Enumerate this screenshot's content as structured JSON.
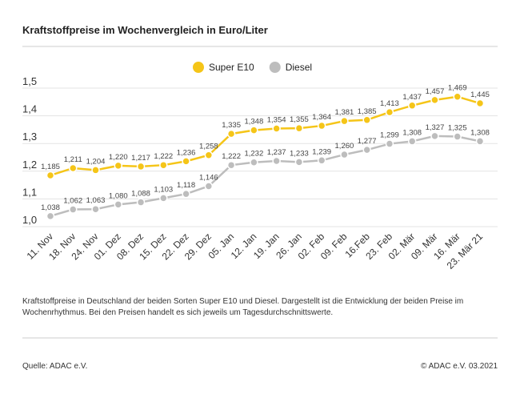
{
  "chart_data": {
    "type": "line",
    "title": "Kraftstoffpreise im Wochenvergleich in Euro/Liter",
    "categories": [
      "11. Nov",
      "18. Nov",
      "24. Nov",
      "01. Dez",
      "08. Dez",
      "15. Dez",
      "22. Dez",
      "29. Dez",
      "05. Jan",
      "12. Jan",
      "19. Jan",
      "26. Jan",
      "02. Feb",
      "09. Feb",
      "16.Feb",
      "23. Feb",
      "02. Mär",
      "09. Mär",
      "16. Mär",
      "23. Mär 21"
    ],
    "series": [
      {
        "name": "Super E10",
        "color": "#f5c518",
        "values": [
          1.185,
          1.211,
          1.204,
          1.22,
          1.217,
          1.222,
          1.236,
          1.258,
          1.335,
          1.348,
          1.354,
          1.355,
          1.364,
          1.381,
          1.385,
          1.413,
          1.437,
          1.457,
          1.469,
          1.445
        ],
        "value_labels": [
          "1,185",
          "1,211",
          "1,204",
          "1,220",
          "1,217",
          "1,222",
          "1,236",
          "1,258",
          "1,335",
          "1,348",
          "1,354",
          "1,355",
          "1,364",
          "1,381",
          "1,385",
          "1,413",
          "1,437",
          "1,457",
          "1,469",
          "1,445"
        ]
      },
      {
        "name": "Diesel",
        "color": "#bdbdbd",
        "values": [
          1.038,
          1.062,
          1.063,
          1.08,
          1.088,
          1.103,
          1.118,
          1.146,
          1.222,
          1.232,
          1.237,
          1.233,
          1.239,
          1.26,
          1.277,
          1.299,
          1.308,
          1.327,
          1.325,
          1.308
        ],
        "value_labels": [
          "1,038",
          "1,062",
          "1,063",
          "1,080",
          "1,088",
          "1,103",
          "1,118",
          "1,146",
          "1,222",
          "1,232",
          "1,237",
          "1,233",
          "1,239",
          "1,260",
          "1,277",
          "1,299",
          "1,308",
          "1,327",
          "1,325",
          "1,308"
        ]
      }
    ],
    "ylim": [
      1.0,
      1.5
    ],
    "yticks": [
      {
        "value": 1.0,
        "label": "1,0"
      },
      {
        "value": 1.1,
        "label": "1,1"
      },
      {
        "value": 1.2,
        "label": "1,2"
      },
      {
        "value": 1.3,
        "label": "1,3"
      },
      {
        "value": 1.4,
        "label": "1,4"
      },
      {
        "value": 1.5,
        "label": "1,5"
      }
    ],
    "grid": true,
    "legend": "top",
    "note": "Kraftstoffpreise in Deutschland der beiden Sorten Super E10 und Diesel. Dargestellt ist die Entwicklung der beiden Preise im Wochenrhythmus. Bei den Preisen handelt es sich jeweils um Tagesdurchschnittswerte.",
    "source": "Quelle: ADAC e.V.",
    "copyright": "© ADAC e.V. 03.2021"
  }
}
